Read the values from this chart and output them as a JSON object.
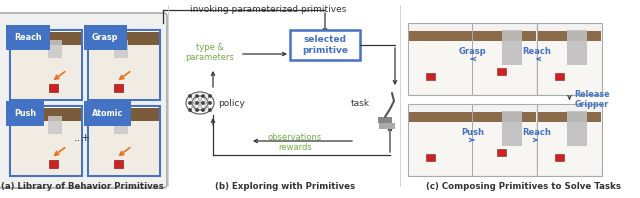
{
  "background_color": "#ffffff",
  "caption_a": "(a) Library of Behavior Primitives",
  "caption_b": "(b) Exploring with Primitives",
  "caption_c": "(c) Composing Primitives to Solve Tasks",
  "top_text": "invoking parameterized primitives",
  "selected_primitive_label": "selected\nprimitive",
  "type_params_label": "type &\nparameters",
  "policy_label": "policy",
  "task_label": "task",
  "observations_label": "observations",
  "rewards_label": "rewards",
  "panel_labels_a": [
    "Reach",
    "Grasp",
    "Push",
    "Atomic"
  ],
  "release_gripper_label": "Release\nGripper",
  "blue": "#4472c4",
  "green": "#70ad47",
  "dark": "#333333",
  "gray_edge": "#999999",
  "panel_bg_c": "#e8e8e8",
  "figsize": [
    6.4,
    1.98
  ],
  "dpi": 100
}
